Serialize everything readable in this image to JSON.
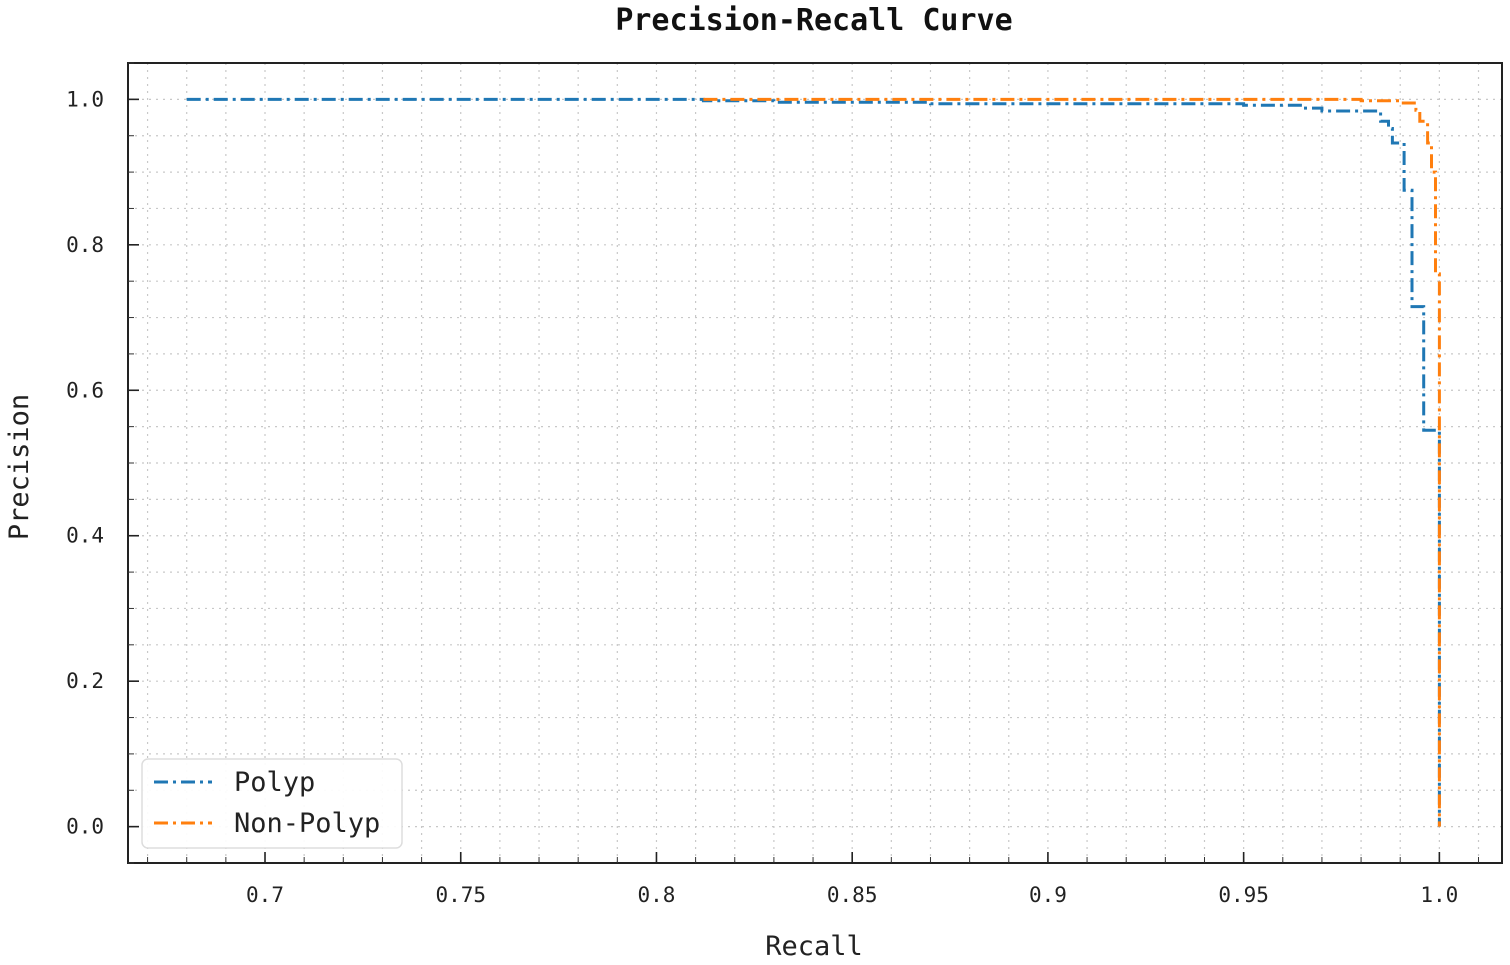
{
  "chart_data": {
    "type": "line",
    "title": "Precision-Recall Curve",
    "xlabel": "Recall",
    "ylabel": "Precision",
    "xlim": [
      0.665,
      1.016
    ],
    "ylim": [
      -0.05,
      1.05
    ],
    "xticks": [
      {
        "value": 0.7,
        "label": "0.7"
      },
      {
        "value": 0.75,
        "label": "0.75"
      },
      {
        "value": 0.8,
        "label": "0.8"
      },
      {
        "value": 0.85,
        "label": "0.85"
      },
      {
        "value": 0.9,
        "label": "0.9"
      },
      {
        "value": 0.95,
        "label": "0.95"
      },
      {
        "value": 1.0,
        "label": "1.0"
      }
    ],
    "yticks": [
      {
        "value": 0.0,
        "label": "0.0"
      },
      {
        "value": 0.2,
        "label": "0.2"
      },
      {
        "value": 0.4,
        "label": "0.4"
      },
      {
        "value": 0.6,
        "label": "0.6"
      },
      {
        "value": 0.8,
        "label": "0.8"
      },
      {
        "value": 1.0,
        "label": "1.0"
      }
    ],
    "grid": true,
    "legend_position": "lower-left",
    "series": [
      {
        "name": "Polyp",
        "color": "#1f77b4",
        "points": [
          [
            0.68,
            1.0
          ],
          [
            0.812,
            1.0
          ],
          [
            0.812,
            0.998
          ],
          [
            0.83,
            0.998
          ],
          [
            0.83,
            0.996
          ],
          [
            0.87,
            0.996
          ],
          [
            0.87,
            0.994
          ],
          [
            0.95,
            0.994
          ],
          [
            0.95,
            0.992
          ],
          [
            0.965,
            0.992
          ],
          [
            0.965,
            0.988
          ],
          [
            0.97,
            0.988
          ],
          [
            0.97,
            0.984
          ],
          [
            0.985,
            0.984
          ],
          [
            0.985,
            0.97
          ],
          [
            0.987,
            0.97
          ],
          [
            0.987,
            0.96
          ],
          [
            0.988,
            0.96
          ],
          [
            0.988,
            0.94
          ],
          [
            0.991,
            0.94
          ],
          [
            0.991,
            0.875
          ],
          [
            0.993,
            0.875
          ],
          [
            0.993,
            0.715
          ],
          [
            0.996,
            0.715
          ],
          [
            0.996,
            0.545
          ],
          [
            1.0,
            0.545
          ],
          [
            1.0,
            0.0
          ]
        ]
      },
      {
        "name": "Non-Polyp",
        "color": "#ff7f0e",
        "points": [
          [
            0.812,
            1.0
          ],
          [
            0.98,
            1.0
          ],
          [
            0.98,
            0.998
          ],
          [
            0.99,
            0.998
          ],
          [
            0.99,
            0.995
          ],
          [
            0.994,
            0.995
          ],
          [
            0.994,
            0.985
          ],
          [
            0.995,
            0.985
          ],
          [
            0.995,
            0.97
          ],
          [
            0.997,
            0.97
          ],
          [
            0.997,
            0.94
          ],
          [
            0.998,
            0.94
          ],
          [
            0.998,
            0.9
          ],
          [
            0.999,
            0.9
          ],
          [
            0.999,
            0.76
          ],
          [
            1.0,
            0.76
          ],
          [
            1.0,
            0.0
          ]
        ]
      }
    ]
  }
}
